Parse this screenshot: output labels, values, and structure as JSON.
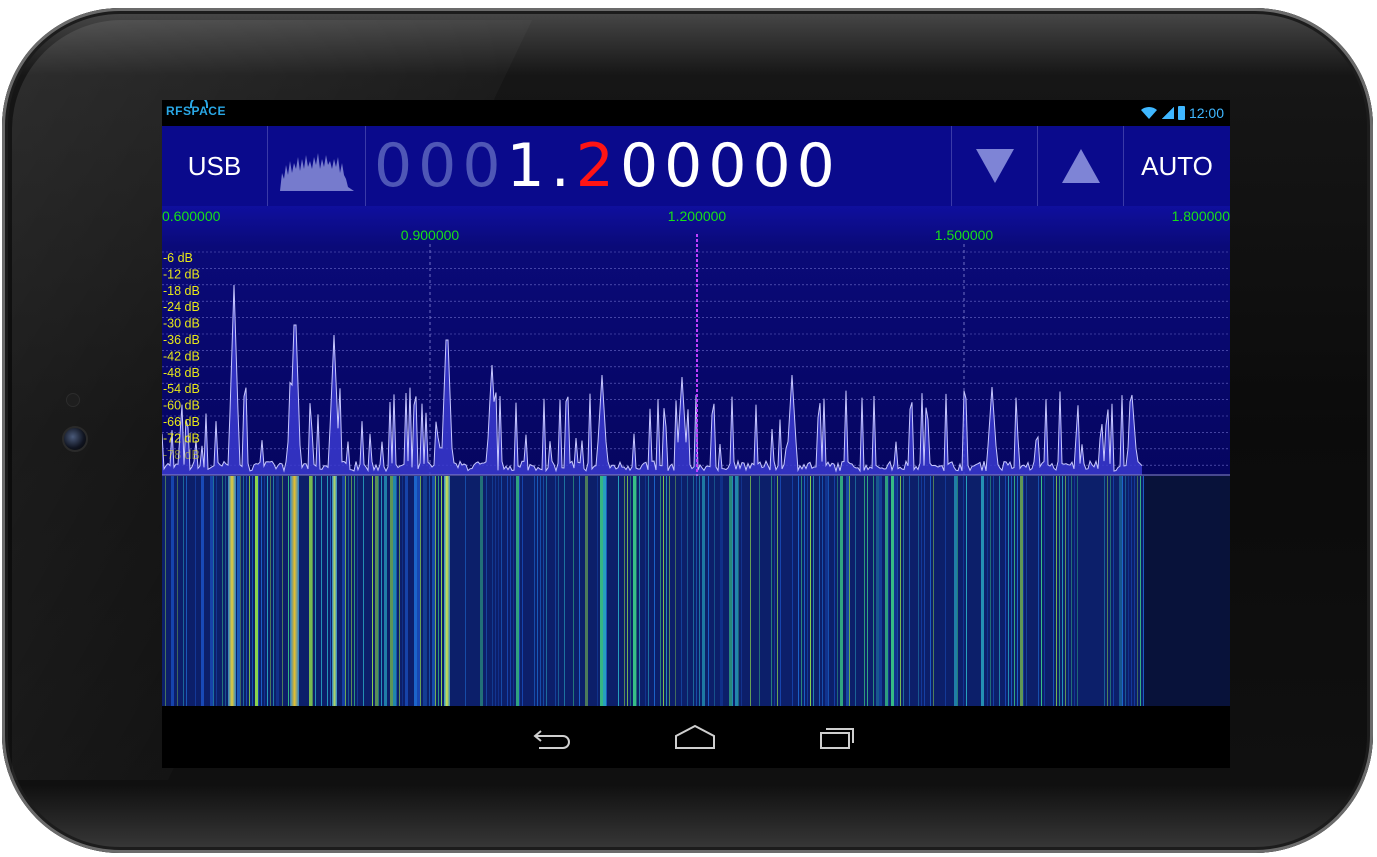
{
  "status_bar": {
    "logo_text": "RFSPACE",
    "time": "12:00",
    "icons": [
      "wifi-icon",
      "signal-icon",
      "battery-icon"
    ],
    "accent_color": "#3fb7ff"
  },
  "toolbar": {
    "mode_label": "USB",
    "auto_label": "AUTO",
    "down_icon": "triangle-down-icon",
    "up_icon": "triangle-up-icon",
    "frequency": {
      "dim_digits": "000",
      "lit_digit": "1",
      "separator": ".",
      "red_digit": "2",
      "rest_digits": "00000"
    },
    "background_color": "#0a0a8c"
  },
  "spectrum": {
    "freq_labels_top": [
      "0.600000",
      "1.200000",
      "1.800000"
    ],
    "freq_labels_second": [
      "0.900000",
      "1.500000"
    ],
    "db_labels": [
      "-6 dB",
      "-12 dB",
      "-18 dB",
      "-24 dB",
      "-30 dB",
      "-36 dB",
      "-42 dB",
      "-48 dB",
      "-54 dB",
      "-60 dB",
      "-66 dB",
      "-72 dB",
      "-78 dB"
    ],
    "label_color_freq": "#18e018",
    "label_color_db": "#e8e818",
    "center_marker_color": "#c040ff"
  },
  "navigation": {
    "back_icon": "back-arrow-icon",
    "home_icon": "home-icon",
    "recents_icon": "recent-apps-icon"
  }
}
